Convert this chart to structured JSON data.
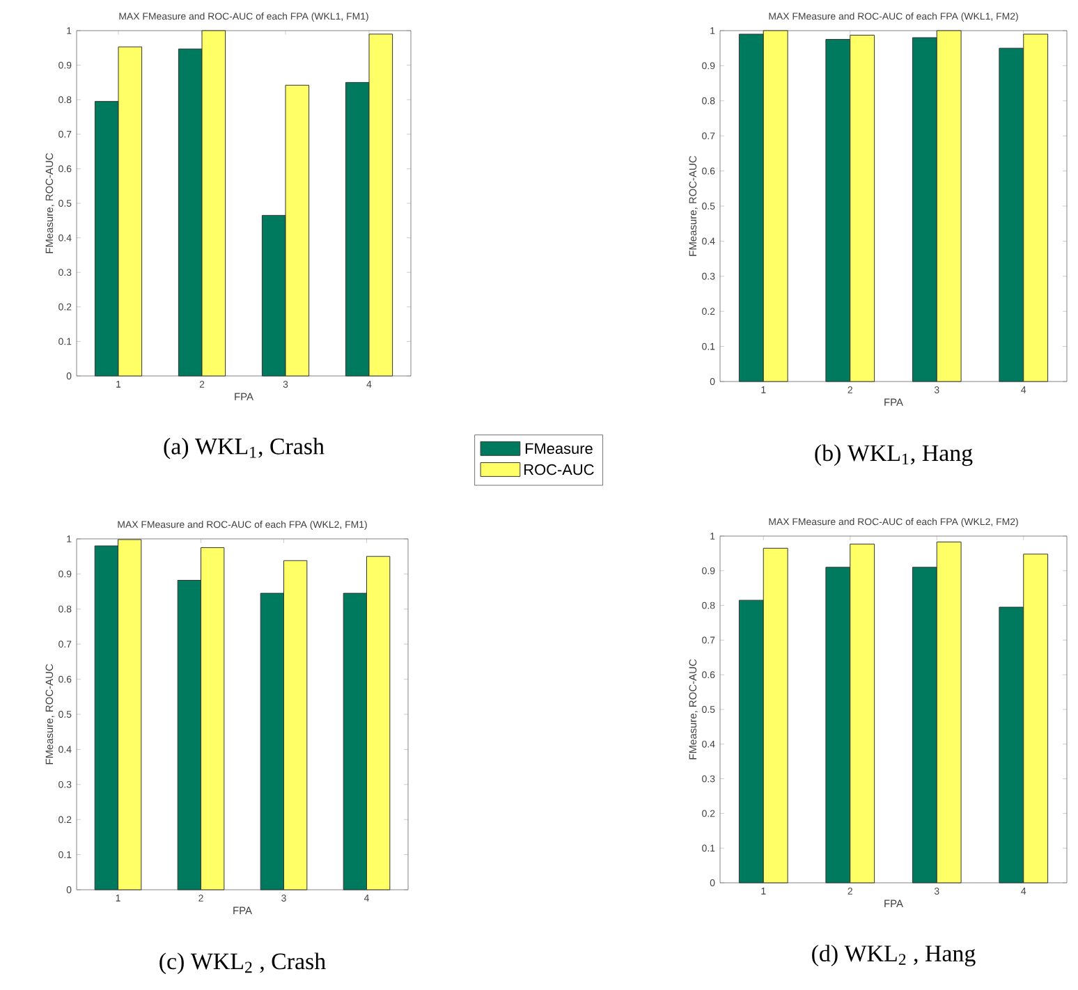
{
  "chart_data": [
    {
      "type": "bar",
      "title": "MAX FMeasure and ROC-AUC of each FPA (WKL1, FM1)",
      "xlabel": "FPA",
      "ylabel": "FMeasure, ROC-AUC",
      "categories": [
        "1",
        "2",
        "3",
        "4"
      ],
      "ylim": [
        0,
        1
      ],
      "yticks": [
        0,
        0.1,
        0.2,
        0.3,
        0.4,
        0.5,
        0.6,
        0.7,
        0.8,
        0.9,
        1
      ],
      "legend": "bottom right",
      "annotations": [
        "(a) WKL$_{1}$, Crash"
      ],
      "series": [
        {
          "name": "FMeasure",
          "color": "#007a5e",
          "values": [
            0.795,
            0.947,
            0.465,
            0.85
          ]
        },
        {
          "name": "ROC-AUC",
          "color": "#ffff66",
          "values": [
            0.953,
            1.0,
            0.842,
            0.99
          ]
        }
      ]
    },
    {
      "type": "bar",
      "title": "MAX FMeasure and ROC-AUC of each FPA (WKL1, FM2)",
      "xlabel": "FPA",
      "ylabel": "FMeasure, ROC-AUC",
      "categories": [
        "1",
        "2",
        "3",
        "4"
      ],
      "ylim": [
        0,
        1
      ],
      "yticks": [
        0,
        0.1,
        0.2,
        0.3,
        0.4,
        0.5,
        0.6,
        0.7,
        0.8,
        0.9,
        1
      ],
      "annotations": [
        "(b) WKL$_{1}$, Hang"
      ],
      "series": [
        {
          "color": "#007a5e",
          "values": [
            0.99,
            0.975,
            0.98,
            0.95
          ]
        },
        {
          "color": "#ffff66",
          "values": [
            1.0,
            0.987,
            1.0,
            0.99
          ]
        }
      ]
    },
    {
      "type": "bar",
      "title": "MAX FMeasure and ROC-AUC of each FPA (WKL2, FM1)",
      "xlabel": "FPA",
      "ylabel": "FMeasure, ROC-AUC",
      "categories": [
        "1",
        "2",
        "3",
        "4"
      ],
      "ylim": [
        0,
        1
      ],
      "yticks": [
        0,
        0.1,
        0.2,
        0.3,
        0.4,
        0.5,
        0.6,
        0.7,
        0.8,
        0.9,
        1
      ],
      "annotations": [
        "(c) WKL$_{2}$ , Crash"
      ],
      "series": [
        {
          "color": "#007a5e",
          "values": [
            0.98,
            0.882,
            0.845,
            0.845
          ]
        },
        {
          "color": "#ffff66",
          "values": [
            0.998,
            0.975,
            0.938,
            0.95
          ]
        }
      ]
    },
    {
      "type": "bar",
      "title": "MAX FMeasure and ROC-AUC of each FPA (WKL2, FM2)",
      "xlabel": "FPA",
      "ylabel": "FMeasure, ROC-AUC",
      "categories": [
        "1",
        "2",
        "3",
        "4"
      ],
      "ylim": [
        0,
        1
      ],
      "yticks": [
        0,
        0.1,
        0.2,
        0.3,
        0.4,
        0.5,
        0.6,
        0.7,
        0.8,
        0.9,
        1
      ],
      "annotations": [
        "(d) WKL$_{2}$ , Hang"
      ],
      "series": [
        {
          "color": "#007a5e",
          "values": [
            0.815,
            0.91,
            0.91,
            0.795
          ]
        },
        {
          "color": "#ffff66",
          "values": [
            0.965,
            0.977,
            0.983,
            0.948
          ]
        }
      ]
    }
  ]
}
